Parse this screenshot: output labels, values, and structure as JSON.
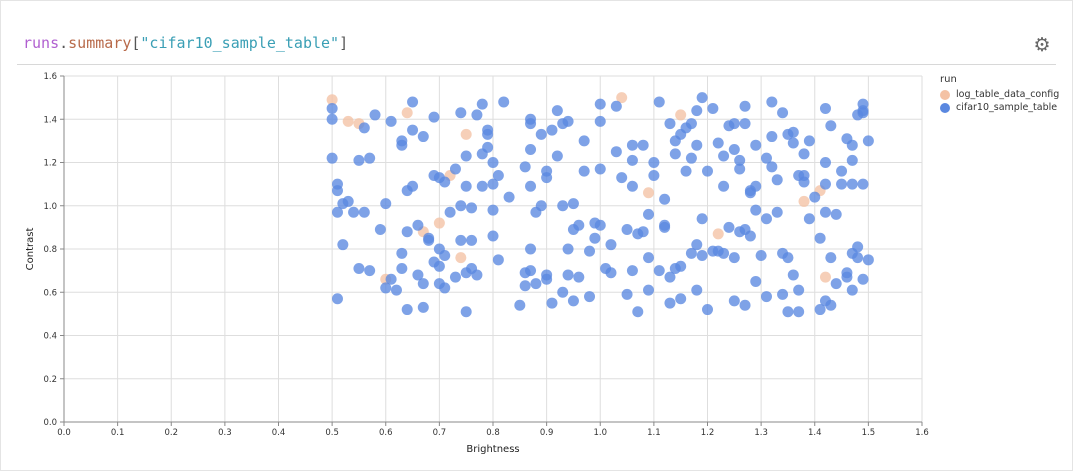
{
  "panel": {
    "title_parts": {
      "runs": "runs",
      "dot": ".",
      "summary": "summary",
      "open": "[",
      "key": "\"cifar10_sample_table\"",
      "close": "]"
    },
    "settings_icon": "gear-icon"
  },
  "colors": {
    "log_table_data_config": "#f4c2a4",
    "cifar10_sample_table": "#5a88e0"
  },
  "chart_data": {
    "type": "scatter",
    "xlabel": "Brightness",
    "ylabel": "Contrast",
    "xlim": [
      0,
      1.6
    ],
    "ylim": [
      0,
      1.6
    ],
    "xticks": [
      "0.0",
      "0.1",
      "0.2",
      "0.3",
      "0.4",
      "0.5",
      "0.6",
      "0.7",
      "0.8",
      "0.9",
      "1.0",
      "1.1",
      "1.2",
      "1.3",
      "1.4",
      "1.5",
      "1.6"
    ],
    "yticks": [
      "0.0",
      "0.2",
      "0.4",
      "0.6",
      "0.8",
      "1.0",
      "1.2",
      "1.4",
      "1.6"
    ],
    "grid": true,
    "legend": {
      "title": "run",
      "placement": "right"
    },
    "series": [
      {
        "name": "log_table_data_config",
        "points": [
          [
            0.5,
            1.49
          ],
          [
            0.53,
            1.39
          ],
          [
            0.55,
            1.38
          ],
          [
            0.64,
            1.43
          ],
          [
            0.75,
            1.33
          ],
          [
            0.72,
            1.14
          ],
          [
            0.67,
            0.88
          ],
          [
            0.7,
            0.92
          ],
          [
            0.74,
            0.76
          ],
          [
            0.6,
            0.66
          ],
          [
            1.04,
            1.5
          ],
          [
            1.09,
            1.06
          ],
          [
            1.15,
            1.42
          ],
          [
            1.22,
            0.87
          ],
          [
            1.38,
            1.02
          ],
          [
            1.41,
            1.07
          ],
          [
            1.42,
            0.67
          ]
        ]
      },
      {
        "name": "cifar10_sample_table",
        "points": [
          [
            0.5,
            1.45
          ],
          [
            0.5,
            1.4
          ],
          [
            0.5,
            1.22
          ],
          [
            0.51,
            1.1
          ],
          [
            0.51,
            1.07
          ],
          [
            0.51,
            0.97
          ],
          [
            0.51,
            0.57
          ],
          [
            0.52,
            0.82
          ],
          [
            0.52,
            1.01
          ],
          [
            0.53,
            1.02
          ],
          [
            0.54,
            0.97
          ],
          [
            0.55,
            1.21
          ],
          [
            0.55,
            0.71
          ],
          [
            0.56,
            0.97
          ],
          [
            0.56,
            1.36
          ],
          [
            0.57,
            0.7
          ],
          [
            0.57,
            1.22
          ],
          [
            0.58,
            1.42
          ],
          [
            0.59,
            0.89
          ],
          [
            0.6,
            1.01
          ],
          [
            0.6,
            0.62
          ],
          [
            0.61,
            0.66
          ],
          [
            0.61,
            1.39
          ],
          [
            0.62,
            0.61
          ],
          [
            0.63,
            1.28
          ],
          [
            0.63,
            1.3
          ],
          [
            0.63,
            0.78
          ],
          [
            0.63,
            0.71
          ],
          [
            0.64,
            0.52
          ],
          [
            0.64,
            0.88
          ],
          [
            0.64,
            1.07
          ],
          [
            0.65,
            1.09
          ],
          [
            0.65,
            1.35
          ],
          [
            0.65,
            1.48
          ],
          [
            0.66,
            0.91
          ],
          [
            0.66,
            0.68
          ],
          [
            0.67,
            0.53
          ],
          [
            0.67,
            0.64
          ],
          [
            0.67,
            1.32
          ],
          [
            0.68,
            0.85
          ],
          [
            0.68,
            0.84
          ],
          [
            0.69,
            1.14
          ],
          [
            0.69,
            0.74
          ],
          [
            0.69,
            1.41
          ],
          [
            0.7,
            1.13
          ],
          [
            0.7,
            0.8
          ],
          [
            0.7,
            0.64
          ],
          [
            0.7,
            0.72
          ],
          [
            0.71,
            0.62
          ],
          [
            0.71,
            0.77
          ],
          [
            0.71,
            1.11
          ],
          [
            0.72,
            0.97
          ],
          [
            0.73,
            1.17
          ],
          [
            0.73,
            0.67
          ],
          [
            0.74,
            1.0
          ],
          [
            0.74,
            0.84
          ],
          [
            0.74,
            1.43
          ],
          [
            0.75,
            0.69
          ],
          [
            0.75,
            1.23
          ],
          [
            0.75,
            1.09
          ],
          [
            0.75,
            0.51
          ],
          [
            0.76,
            0.84
          ],
          [
            0.76,
            0.71
          ],
          [
            0.76,
            0.99
          ],
          [
            0.77,
            1.42
          ],
          [
            0.77,
            0.68
          ],
          [
            0.78,
            1.47
          ],
          [
            0.78,
            1.24
          ],
          [
            0.78,
            1.09
          ],
          [
            0.79,
            1.35
          ],
          [
            0.79,
            1.33
          ],
          [
            0.79,
            1.27
          ],
          [
            0.8,
            1.2
          ],
          [
            0.8,
            1.1
          ],
          [
            0.8,
            0.98
          ],
          [
            0.8,
            0.86
          ],
          [
            0.81,
            1.14
          ],
          [
            0.81,
            0.75
          ],
          [
            0.82,
            1.48
          ],
          [
            0.83,
            1.04
          ],
          [
            0.85,
            0.54
          ],
          [
            0.86,
            0.63
          ],
          [
            0.86,
            0.69
          ],
          [
            0.86,
            1.18
          ],
          [
            0.87,
            1.4
          ],
          [
            0.87,
            1.38
          ],
          [
            0.87,
            1.26
          ],
          [
            0.87,
            1.09
          ],
          [
            0.87,
            0.8
          ],
          [
            0.87,
            0.7
          ],
          [
            0.88,
            0.97
          ],
          [
            0.88,
            0.64
          ],
          [
            0.89,
            1.33
          ],
          [
            0.89,
            1.0
          ],
          [
            0.9,
            1.13
          ],
          [
            0.9,
            1.16
          ],
          [
            0.9,
            0.68
          ],
          [
            0.9,
            0.66
          ],
          [
            0.91,
            0.55
          ],
          [
            0.91,
            1.35
          ],
          [
            0.92,
            1.23
          ],
          [
            0.92,
            1.44
          ],
          [
            0.93,
            0.6
          ],
          [
            0.93,
            1.38
          ],
          [
            0.93,
            1.0
          ],
          [
            0.94,
            0.68
          ],
          [
            0.94,
            0.8
          ],
          [
            0.94,
            1.39
          ],
          [
            0.95,
            0.56
          ],
          [
            0.95,
            0.89
          ],
          [
            0.95,
            1.01
          ],
          [
            0.96,
            0.91
          ],
          [
            0.96,
            0.67
          ],
          [
            0.97,
            1.3
          ],
          [
            0.97,
            1.16
          ],
          [
            0.98,
            0.58
          ],
          [
            0.98,
            0.79
          ],
          [
            0.99,
            0.85
          ],
          [
            0.99,
            0.92
          ],
          [
            1.0,
            1.39
          ],
          [
            1.0,
            0.91
          ],
          [
            1.0,
            1.47
          ],
          [
            1.0,
            1.17
          ],
          [
            1.01,
            0.71
          ],
          [
            1.02,
            0.69
          ],
          [
            1.02,
            0.82
          ],
          [
            1.03,
            1.25
          ],
          [
            1.03,
            1.46
          ],
          [
            1.04,
            1.13
          ],
          [
            1.05,
            0.59
          ],
          [
            1.05,
            0.89
          ],
          [
            1.06,
            1.21
          ],
          [
            1.06,
            1.28
          ],
          [
            1.06,
            1.09
          ],
          [
            1.06,
            0.7
          ],
          [
            1.07,
            0.87
          ],
          [
            1.07,
            0.51
          ],
          [
            1.08,
            1.28
          ],
          [
            1.08,
            0.88
          ],
          [
            1.09,
            0.76
          ],
          [
            1.09,
            0.61
          ],
          [
            1.09,
            0.96
          ],
          [
            1.1,
            1.14
          ],
          [
            1.1,
            1.2
          ],
          [
            1.11,
            0.7
          ],
          [
            1.11,
            1.48
          ],
          [
            1.12,
            0.9
          ],
          [
            1.12,
            1.03
          ],
          [
            1.12,
            0.91
          ],
          [
            1.13,
            0.55
          ],
          [
            1.13,
            0.67
          ],
          [
            1.13,
            1.38
          ],
          [
            1.14,
            1.24
          ],
          [
            1.14,
            0.71
          ],
          [
            1.14,
            1.3
          ],
          [
            1.15,
            0.72
          ],
          [
            1.15,
            0.57
          ],
          [
            1.15,
            1.33
          ],
          [
            1.16,
            1.16
          ],
          [
            1.16,
            1.36
          ],
          [
            1.17,
            1.38
          ],
          [
            1.17,
            0.78
          ],
          [
            1.17,
            1.22
          ],
          [
            1.18,
            1.44
          ],
          [
            1.18,
            1.28
          ],
          [
            1.18,
            0.82
          ],
          [
            1.18,
            0.61
          ],
          [
            1.19,
            0.77
          ],
          [
            1.19,
            1.5
          ],
          [
            1.19,
            0.94
          ],
          [
            1.2,
            1.16
          ],
          [
            1.2,
            0.52
          ],
          [
            1.21,
            0.79
          ],
          [
            1.21,
            1.45
          ],
          [
            1.22,
            0.79
          ],
          [
            1.22,
            1.29
          ],
          [
            1.23,
            1.23
          ],
          [
            1.23,
            1.09
          ],
          [
            1.23,
            0.78
          ],
          [
            1.24,
            1.37
          ],
          [
            1.24,
            0.9
          ],
          [
            1.25,
            0.56
          ],
          [
            1.25,
            1.38
          ],
          [
            1.25,
            1.26
          ],
          [
            1.25,
            0.76
          ],
          [
            1.26,
            1.17
          ],
          [
            1.26,
            1.21
          ],
          [
            1.26,
            0.88
          ],
          [
            1.27,
            1.38
          ],
          [
            1.27,
            0.89
          ],
          [
            1.27,
            0.54
          ],
          [
            1.27,
            1.46
          ],
          [
            1.28,
            1.07
          ],
          [
            1.28,
            1.06
          ],
          [
            1.28,
            0.86
          ],
          [
            1.29,
            0.98
          ],
          [
            1.29,
            0.65
          ],
          [
            1.29,
            1.28
          ],
          [
            1.29,
            1.09
          ],
          [
            1.3,
            0.77
          ],
          [
            1.31,
            0.58
          ],
          [
            1.31,
            0.94
          ],
          [
            1.31,
            1.22
          ],
          [
            1.32,
            1.32
          ],
          [
            1.32,
            1.48
          ],
          [
            1.32,
            1.18
          ],
          [
            1.33,
            0.97
          ],
          [
            1.33,
            1.12
          ],
          [
            1.34,
            1.43
          ],
          [
            1.34,
            0.59
          ],
          [
            1.34,
            0.78
          ],
          [
            1.35,
            0.51
          ],
          [
            1.35,
            0.76
          ],
          [
            1.35,
            1.33
          ],
          [
            1.36,
            1.34
          ],
          [
            1.36,
            1.29
          ],
          [
            1.36,
            0.68
          ],
          [
            1.37,
            0.51
          ],
          [
            1.37,
            0.61
          ],
          [
            1.37,
            1.14
          ],
          [
            1.38,
            1.11
          ],
          [
            1.38,
            1.24
          ],
          [
            1.38,
            1.14
          ],
          [
            1.39,
            0.94
          ],
          [
            1.39,
            1.3
          ],
          [
            1.4,
            1.04
          ],
          [
            1.41,
            0.52
          ],
          [
            1.41,
            0.85
          ],
          [
            1.42,
            1.45
          ],
          [
            1.42,
            1.2
          ],
          [
            1.42,
            0.56
          ],
          [
            1.42,
            1.1
          ],
          [
            1.42,
            0.97
          ],
          [
            1.43,
            1.37
          ],
          [
            1.43,
            0.54
          ],
          [
            1.43,
            0.76
          ],
          [
            1.44,
            0.64
          ],
          [
            1.44,
            0.96
          ],
          [
            1.45,
            1.16
          ],
          [
            1.45,
            1.1
          ],
          [
            1.46,
            0.67
          ],
          [
            1.46,
            0.69
          ],
          [
            1.46,
            1.31
          ],
          [
            1.47,
            1.28
          ],
          [
            1.47,
            1.21
          ],
          [
            1.47,
            0.61
          ],
          [
            1.47,
            1.1
          ],
          [
            1.47,
            0.78
          ],
          [
            1.48,
            1.42
          ],
          [
            1.48,
            0.81
          ],
          [
            1.48,
            0.76
          ],
          [
            1.49,
            1.47
          ],
          [
            1.49,
            1.44
          ],
          [
            1.49,
            1.43
          ],
          [
            1.49,
            1.1
          ],
          [
            1.49,
            0.66
          ],
          [
            1.5,
            1.3
          ],
          [
            1.5,
            0.75
          ]
        ]
      }
    ]
  }
}
